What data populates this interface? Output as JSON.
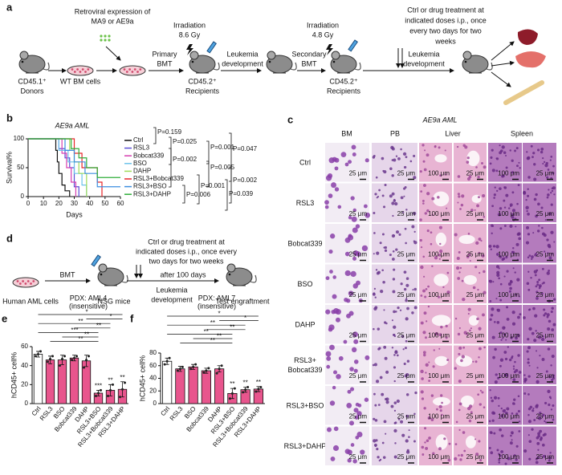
{
  "panel_a": {
    "label": "a",
    "retroviral": [
      "Retroviral expression of",
      "MA9 or AE9a"
    ],
    "donors": [
      "CD45.1⁺",
      "Donors"
    ],
    "bm_cells": "WT BM cells",
    "irradiation_1": [
      "Irradiation",
      "8.6 Gy"
    ],
    "primary_bmt": [
      "Primary",
      "BMT"
    ],
    "recipients_1": [
      "CD45.2⁺",
      "Recipients"
    ],
    "development_1": [
      "Leukemia",
      "development"
    ],
    "secondary_bmt": [
      "Secondary",
      "BMT"
    ],
    "irradiation_2": [
      "Irradiation",
      "4.8 Gy"
    ],
    "recipients_2": [
      "CD45.2⁺",
      "Recipients"
    ],
    "treatment": [
      "Ctrl or drug treatment at",
      "indicated doses i.p., once",
      "every two days for two",
      "weeks"
    ],
    "development_2": [
      "Leukemia",
      "development"
    ]
  },
  "panel_c": {
    "label": "c",
    "title": "AE9a AML",
    "columns": [
      "BM",
      "PB",
      "Liver",
      "Spleen"
    ],
    "rows": [
      [
        "Ctrl"
      ],
      [
        "RSL3"
      ],
      [
        "Bobcat339"
      ],
      [
        "BSO"
      ],
      [
        "DAHP"
      ],
      [
        "RSL3+",
        "Bobcat339"
      ],
      [
        "RSL3+BSO"
      ],
      [
        "RSL3+DAHP"
      ]
    ],
    "scale_bars": [
      "25 μm",
      "25 μm",
      "100 μm",
      "25 μm",
      "100 μm",
      "25 μm"
    ]
  },
  "panel_d": {
    "label": "d",
    "cells": "Human AML cells",
    "bmt": "BMT",
    "mice": "NSG mice",
    "treatment": [
      "Ctrl or drug treatment at",
      "indicated doses i.p., once every",
      "two days for two weeks"
    ],
    "after": "after 100 days",
    "development": [
      "Leukemia",
      "development"
    ],
    "test": "Test engraftment"
  },
  "chart_data": [
    {
      "type": "line",
      "label": "b",
      "title": "AE9a AML",
      "xlabel": "Days",
      "ylabel": "Survival%",
      "step": true,
      "xlim": [
        0,
        60
      ],
      "ylim": [
        0,
        100
      ],
      "xticks": [
        0,
        10,
        20,
        30,
        40,
        50,
        60
      ],
      "yticks": [
        0,
        50,
        100
      ],
      "series": [
        {
          "name": "Ctrl",
          "color": "#111111",
          "x": [
            0,
            18,
            19,
            20,
            22,
            24,
            27
          ],
          "values": [
            100,
            80,
            60,
            40,
            20,
            10,
            0
          ]
        },
        {
          "name": "RSL3",
          "color": "#5b4fd6",
          "x": [
            0,
            20,
            24,
            27,
            30,
            33
          ],
          "values": [
            100,
            83,
            67,
            50,
            17,
            0
          ]
        },
        {
          "name": "Bobcat339",
          "color": "#d63fb0",
          "x": [
            0,
            22,
            25,
            28,
            31
          ],
          "values": [
            100,
            75,
            50,
            25,
            0
          ]
        },
        {
          "name": "BSO",
          "color": "#6cc3ea",
          "x": [
            0,
            20,
            26,
            30,
            35,
            38
          ],
          "values": [
            100,
            80,
            60,
            40,
            20,
            0
          ]
        },
        {
          "name": "DAHP",
          "color": "#9fdc5a",
          "x": [
            0,
            27,
            30,
            33,
            38
          ],
          "values": [
            100,
            80,
            60,
            40,
            0
          ]
        },
        {
          "name": "RSL3+Bobcat339",
          "color": "#e8262a",
          "x": [
            0,
            30,
            35,
            45,
            48
          ],
          "values": [
            100,
            75,
            50,
            25,
            0
          ]
        },
        {
          "name": "RSL3+BSO",
          "color": "#3d8fe0",
          "x": [
            0,
            24,
            30,
            37,
            45,
            60
          ],
          "values": [
            100,
            80,
            60,
            40,
            17,
            17
          ]
        },
        {
          "name": "RSL3+DAHP",
          "color": "#2fae3a",
          "x": [
            0,
            28,
            33,
            38,
            45,
            60
          ],
          "values": [
            100,
            83,
            67,
            50,
            33,
            33
          ]
        }
      ],
      "p_values": [
        "P=0.159",
        "P=0.025",
        "P=0.002",
        "P=0.001",
        "P=0.005",
        "P=0.047",
        "P=0.001",
        "P=0.002",
        "P=0.006",
        "P=0.039"
      ]
    },
    {
      "type": "bar",
      "label": "e",
      "title": "PDX: AML4",
      "subtitle": "(insensitive)",
      "ylabel": "hCD45+ cell%",
      "categories": [
        "Ctrl",
        "RSL3",
        "BSO",
        "Bobcat339",
        "DAHP",
        "RSL3+BSO",
        "RSL3+Bobcat339",
        "RSL3+DAHP"
      ],
      "values": [
        52,
        46,
        46,
        48,
        45,
        11,
        14,
        15
      ],
      "errors": [
        3,
        4,
        5,
        3,
        6,
        3,
        6,
        8
      ],
      "points": [
        [
          50,
          52,
          55
        ],
        [
          44,
          47,
          50
        ],
        [
          40,
          47,
          50
        ],
        [
          46,
          48,
          50
        ],
        [
          38,
          46,
          50
        ],
        [
          8,
          11,
          14
        ],
        [
          8,
          14,
          20
        ],
        [
          7,
          15,
          22
        ]
      ],
      "value_labels": [
        null,
        null,
        null,
        null,
        null,
        "***",
        "**",
        "**"
      ],
      "comparisons": [
        "*",
        "*",
        "**",
        "**",
        "***",
        "**",
        "**"
      ],
      "color": "#e8558d",
      "control_color": "#ffffff",
      "ylim": [
        0,
        60
      ],
      "yticks": [
        0,
        20,
        40,
        60
      ]
    },
    {
      "type": "bar",
      "label": "f",
      "title": "PDX: AML7",
      "subtitle": "(insensitive)",
      "ylabel": "hCD45+ cell%",
      "categories": [
        "Ctrl",
        "RSL3",
        "BSO",
        "Bobcat339",
        "DAHP",
        "RSL3+BSO",
        "RSL3+Bobcat339",
        "RSL3+DAHP"
      ],
      "values": [
        67,
        55,
        58,
        52,
        55,
        16,
        22,
        23
      ],
      "errors": [
        5,
        4,
        4,
        4,
        5,
        8,
        4,
        4
      ],
      "points": [
        [
          62,
          67,
          72
        ],
        [
          52,
          55,
          58
        ],
        [
          55,
          58,
          62
        ],
        [
          49,
          52,
          56
        ],
        [
          48,
          55,
          60
        ],
        [
          8,
          16,
          24
        ],
        [
          18,
          22,
          26
        ],
        [
          19,
          23,
          26
        ]
      ],
      "value_labels": [
        null,
        null,
        null,
        null,
        null,
        "**",
        "**",
        "**"
      ],
      "comparisons": [
        "*",
        "*",
        "**",
        "**",
        "**",
        "**",
        "**"
      ],
      "color": "#e8558d",
      "control_color": "#ffffff",
      "ylim": [
        0,
        80
      ],
      "yticks": [
        0,
        20,
        40,
        60,
        80
      ]
    }
  ]
}
